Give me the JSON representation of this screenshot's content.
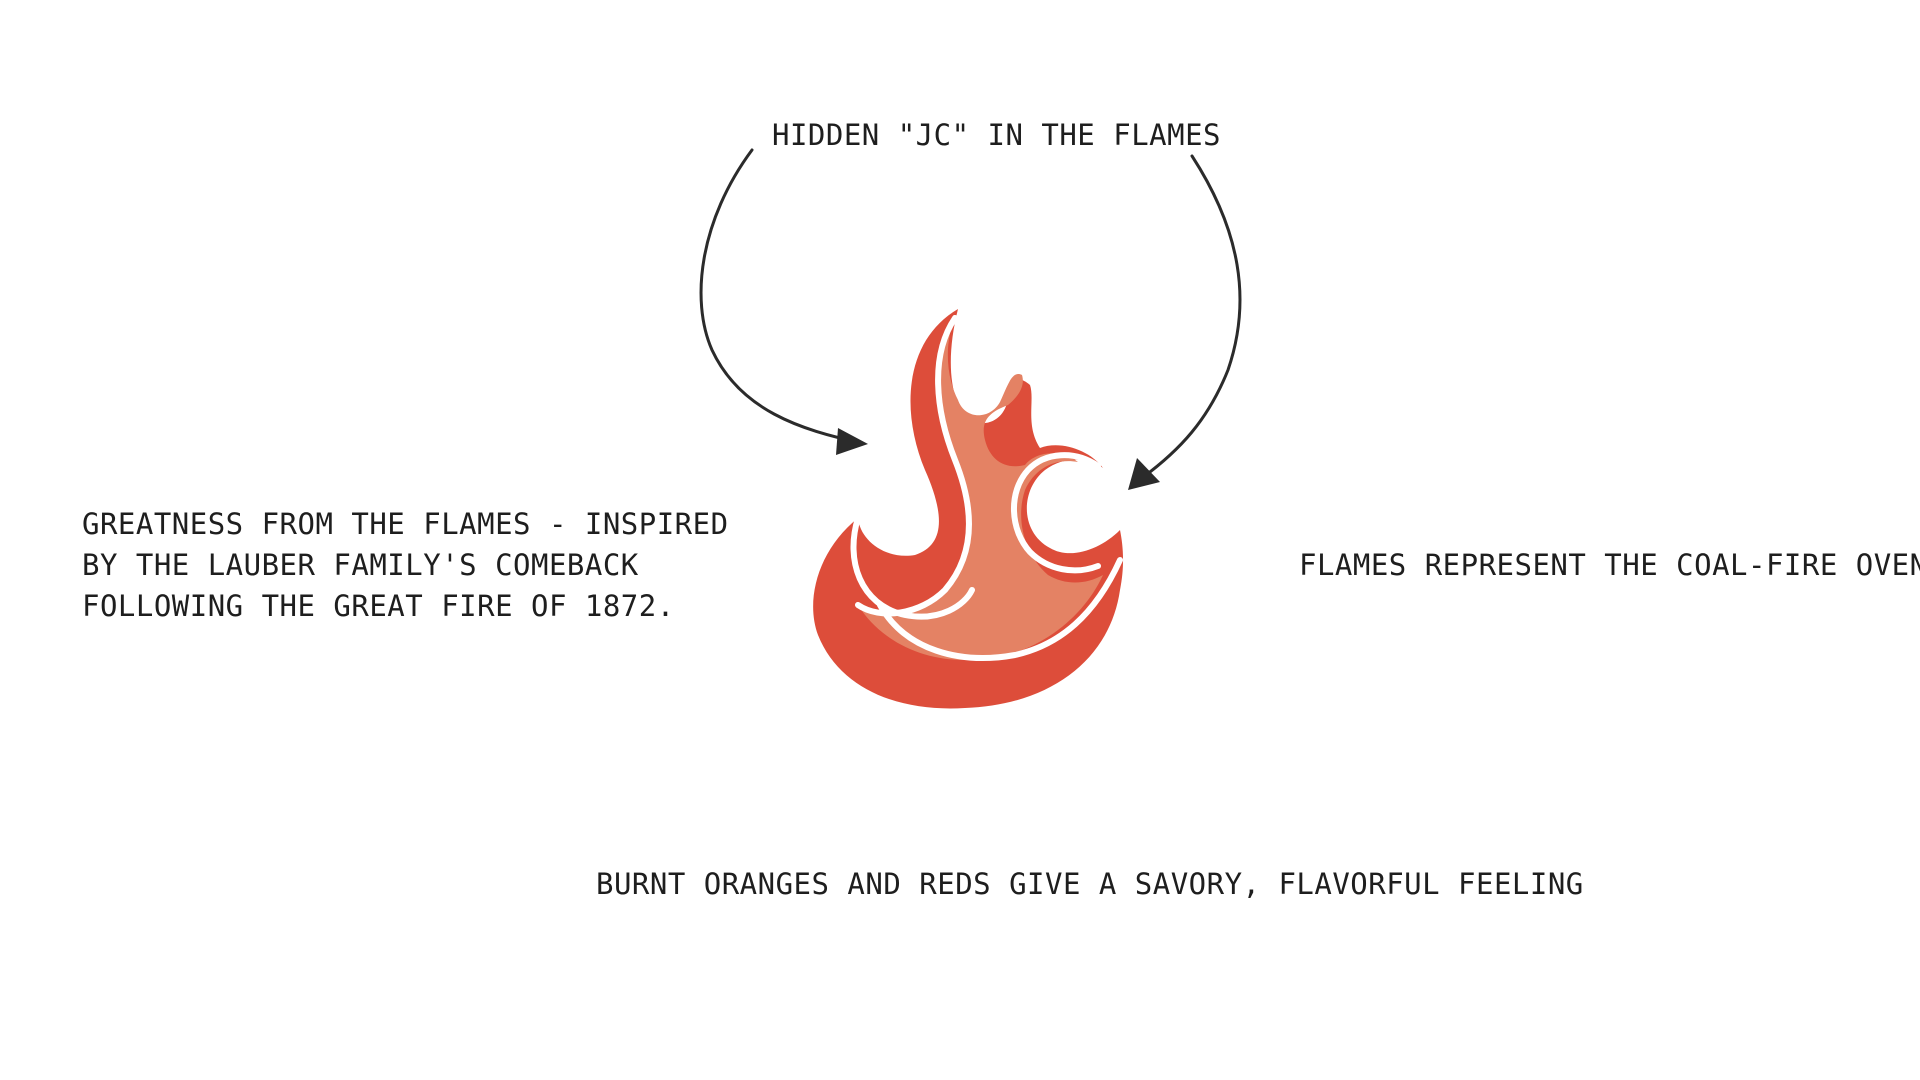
{
  "annotations": {
    "top": "HIDDEN \"JC\" IN THE FLAMES",
    "left_lines": [
      "GREATNESS FROM THE FLAMES - INSPIRED",
      "BY THE LAUBER FAMILY'S COMEBACK",
      "FOLLOWING THE GREAT FIRE OF 1872."
    ],
    "right": "FLAMES REPRESENT THE COAL-FIRE OVEN.",
    "bottom": "BURNT ORANGES AND REDS GIVE A SAVORY, FLAVORFUL FEELING"
  },
  "logo": {
    "icon": "flame-jc-logo-icon",
    "outer_color": "#dd4d3a",
    "inner_color": "#e48264",
    "outline_color": "#ffffff"
  },
  "arrows": {
    "color": "#2b2b2b"
  }
}
